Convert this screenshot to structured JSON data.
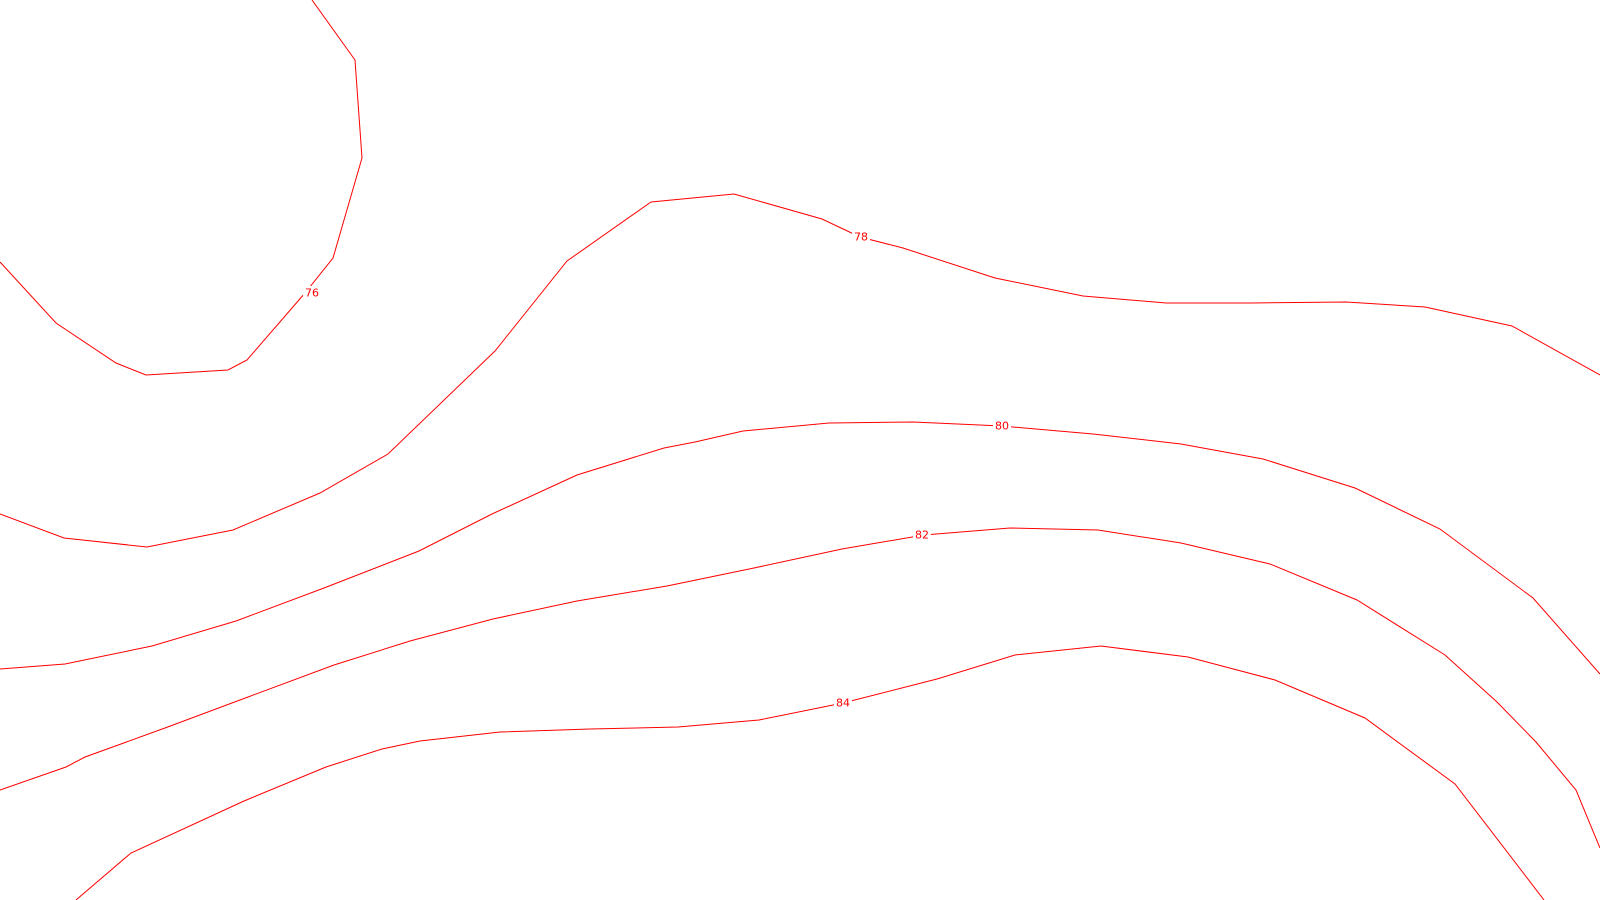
{
  "map": {
    "line_color": "#ff0000",
    "background_color": "#ffffff",
    "contour_labels": {
      "c76": "76",
      "c78": "78",
      "c80": "80",
      "c82": "82",
      "c84": "84"
    }
  }
}
